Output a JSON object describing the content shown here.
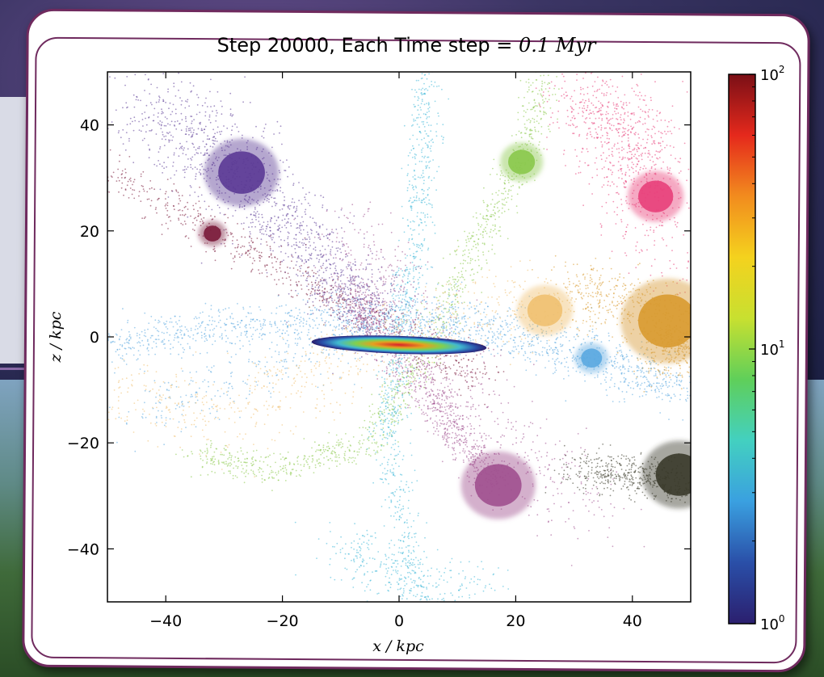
{
  "chart_data": {
    "type": "scatter",
    "title": "Step 20000, Each Time step = 0.1 Myr",
    "title_parts": {
      "prefix": "Step 20000, Each Time step = ",
      "math": "0.1 Myr"
    },
    "xlabel": "x / kpc",
    "ylabel": "z / kpc",
    "xlim": [
      -50,
      50
    ],
    "ylim": [
      -50,
      50
    ],
    "x_ticks": [
      -40,
      -20,
      0,
      20,
      40
    ],
    "y_ticks": [
      40,
      20,
      0,
      -20,
      -40
    ],
    "x_tick_labels": [
      "−40",
      "−20",
      "0",
      "20",
      "40"
    ],
    "y_tick_labels": [
      "40",
      "20",
      "0",
      "−20",
      "−40"
    ],
    "grid": false,
    "colorbar": {
      "scale": "log",
      "min": 1,
      "max": 100,
      "tick_labels": [
        {
          "base": "10",
          "exp": "2",
          "value": 100
        },
        {
          "base": "10",
          "exp": "1",
          "value": 10
        },
        {
          "base": "10",
          "exp": "0",
          "value": 1
        }
      ],
      "colormap": [
        "#2b1f6e",
        "#2a4fa8",
        "#3aa0e0",
        "#43d0c0",
        "#5fcf5a",
        "#c8e030",
        "#f4d21e",
        "#f28c1e",
        "#e5291c",
        "#7a0f16"
      ]
    },
    "series": [
      {
        "color": "#5b3a95",
        "clusters": [
          {
            "x": -27,
            "y": 31,
            "r": 4
          }
        ]
      },
      {
        "color": "#7a1a3a",
        "clusters": [
          {
            "x": -32,
            "y": 19.5,
            "r": 1.5
          }
        ]
      },
      {
        "color": "#8ac84b",
        "clusters": [
          {
            "x": 21,
            "y": 33,
            "r": 2.3
          }
        ]
      },
      {
        "color": "#e83f7a",
        "clusters": [
          {
            "x": 44,
            "y": 26.5,
            "r": 3
          }
        ]
      },
      {
        "color": "#5aa8e0",
        "clusters": [
          {
            "x": 33,
            "y": -4,
            "r": 1.8
          }
        ]
      },
      {
        "color": "#a0508f",
        "clusters": [
          {
            "x": 17,
            "y": -28,
            "r": 4
          }
        ]
      },
      {
        "color": "#d89a30",
        "clusters": [
          {
            "x": 46,
            "y": 3,
            "r": 5
          }
        ]
      },
      {
        "color": "#f0c070",
        "clusters": [
          {
            "x": 25,
            "y": 5,
            "r": 3
          }
        ]
      },
      {
        "color": "#3a3a2a",
        "clusters": [
          {
            "x": 48,
            "y": -26,
            "r": 4
          }
        ]
      },
      {
        "color": "#40b8d8",
        "clusters": []
      }
    ],
    "central_disk": {
      "x_range": [
        -15,
        15
      ],
      "y": -1.5,
      "peak_color": "#e5291c"
    }
  },
  "colors": {
    "card_border": "#6f2a5e"
  }
}
